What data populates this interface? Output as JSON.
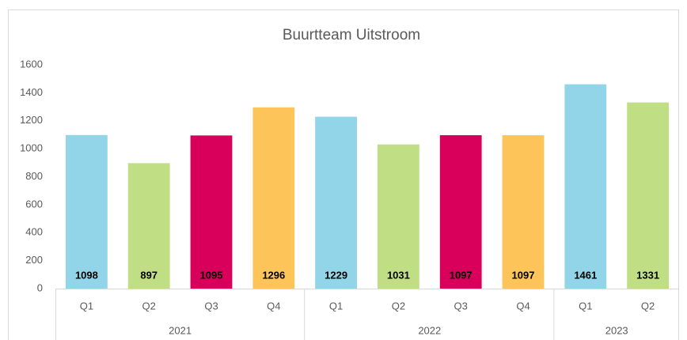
{
  "chart_data": {
    "type": "bar",
    "title": "Buurtteam Uitstroom",
    "groups": [
      {
        "label": "2021",
        "categories": [
          "Q1",
          "Q2",
          "Q3",
          "Q4"
        ],
        "values": [
          1098,
          897,
          1095,
          1296
        ],
        "colors": [
          "#93d5e8",
          "#c0df85",
          "#d9005b",
          "#fdc45a"
        ]
      },
      {
        "label": "2022",
        "categories": [
          "Q1",
          "Q2",
          "Q3",
          "Q4"
        ],
        "values": [
          1229,
          1031,
          1097,
          1097
        ],
        "colors": [
          "#93d5e8",
          "#c0df85",
          "#d9005b",
          "#fdc45a"
        ]
      },
      {
        "label": "2023",
        "categories": [
          "Q1",
          "Q2"
        ],
        "values": [
          1461,
          1331
        ],
        "colors": [
          "#93d5e8",
          "#c0df85"
        ]
      }
    ],
    "ylim": [
      0,
      1600
    ],
    "yticks": [
      0,
      200,
      400,
      600,
      800,
      1000,
      1200,
      1400,
      1600
    ],
    "grid": false
  }
}
